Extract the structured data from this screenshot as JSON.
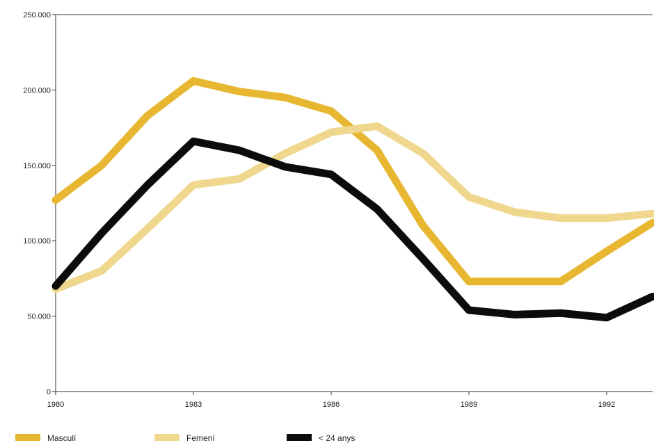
{
  "chart_data": {
    "type": "line",
    "x": [
      1980,
      1981,
      1982,
      1983,
      1984,
      1985,
      1986,
      1987,
      1988,
      1989,
      1990,
      1991,
      1992,
      1993
    ],
    "xlim": [
      1980,
      1993
    ],
    "ylim": [
      0,
      250000
    ],
    "x_ticks": [
      1980,
      1983,
      1986,
      1989,
      1992
    ],
    "x_tick_labels": [
      "1980",
      "1983",
      "1986",
      "1989",
      "1992"
    ],
    "y_ticks": [
      0,
      50000,
      100000,
      150000,
      200000,
      250000
    ],
    "y_tick_labels": [
      "0",
      "50.000",
      "100.000",
      "150.000",
      "200.000",
      "250.000"
    ],
    "grid": false,
    "legend_position": "bottom",
    "series": [
      {
        "name": "Masculí",
        "color": "#e8b731",
        "values": [
          127000,
          150000,
          183000,
          206000,
          199000,
          195000,
          186000,
          160000,
          110000,
          73000,
          73000,
          73000,
          93000,
          112000
        ]
      },
      {
        "name": "Femení",
        "color": "#efd78e",
        "values": [
          68000,
          80000,
          108000,
          137000,
          141000,
          158000,
          172000,
          176000,
          158000,
          129000,
          119000,
          115000,
          115000,
          118000
        ]
      },
      {
        "name": "< 24 anys",
        "color": "#0c0c0c",
        "values": [
          70000,
          105000,
          137000,
          166000,
          160000,
          149000,
          144000,
          121000,
          88000,
          54000,
          51000,
          52000,
          49000,
          63000
        ]
      }
    ]
  }
}
